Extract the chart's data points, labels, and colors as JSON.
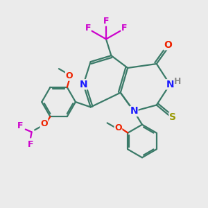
{
  "bg_color": "#ebebeb",
  "bond_color": "#3a7a68",
  "bond_width": 1.6,
  "atom_colors": {
    "N": "#1a1aff",
    "O": "#ee2200",
    "S": "#999900",
    "F": "#cc00cc",
    "H": "#888888",
    "C": "#3a7a68"
  }
}
